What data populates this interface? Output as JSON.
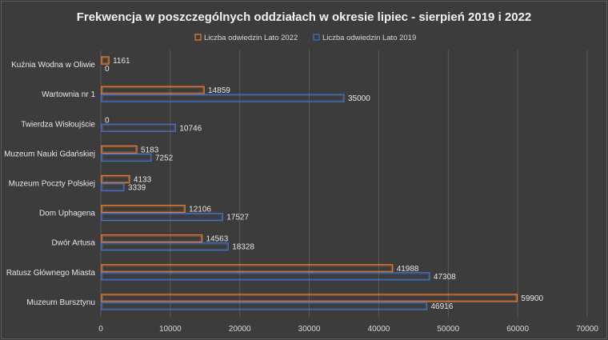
{
  "chart_data": {
    "type": "bar",
    "orientation": "horizontal",
    "title": "Frekwencja w poszczególnych oddziałach w okresie lipiec - sierpień 2019 i 2022",
    "categories": [
      "Kuźnia Wodna w Oliwie",
      "Wartownia nr 1",
      "Twierdza Wisłoujście",
      "Muzeum Nauki Gdańskiej",
      "Muzeum Poczty Polskiej",
      "Dom Uphagena",
      "Dwór Artusa",
      "Ratusz Głównego Miasta",
      "Muzeum Bursztynu"
    ],
    "series": [
      {
        "name": "Liczba odwiedzin Lato 2022",
        "color": "#ed7d31",
        "values": [
          1161,
          14859,
          0,
          5183,
          4133,
          12106,
          14563,
          41988,
          59900
        ]
      },
      {
        "name": "Liczba odwiedzin Lato 2019",
        "color": "#4472c4",
        "values": [
          0,
          35000,
          10746,
          7252,
          3339,
          17527,
          18328,
          47308,
          46916
        ]
      }
    ],
    "xlim": [
      0,
      70000
    ],
    "xticks": [
      0,
      10000,
      20000,
      30000,
      40000,
      50000,
      60000,
      70000
    ],
    "grid": true,
    "legend_position": "top"
  }
}
